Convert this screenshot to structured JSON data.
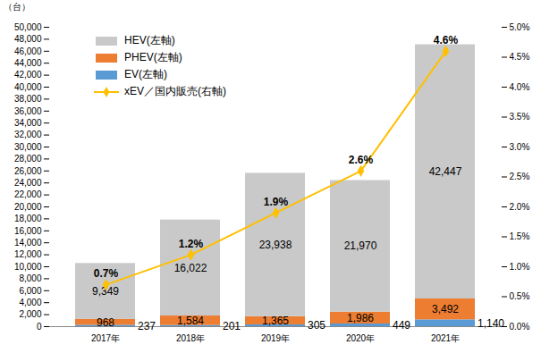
{
  "chart_data": {
    "type": "bar",
    "stacked": true,
    "data_labels": true,
    "legend": "upper left",
    "grid": false,
    "ylabel": "（台）",
    "categories": [
      "2017年",
      "2018年",
      "2019年",
      "2020年",
      "2021年"
    ],
    "ylim": [
      0,
      50000
    ],
    "yticks": [
      0,
      {
        "value": 2000,
        "label": "2,000"
      },
      {
        "value": 4000,
        "label": "4,000"
      },
      {
        "value": 6000,
        "label": "6,000"
      },
      {
        "value": 8000,
        "label": "8,000"
      },
      {
        "value": 10000,
        "label": "10,000"
      },
      {
        "value": 12000,
        "label": "12,000"
      },
      {
        "value": 14000,
        "label": "14,000"
      },
      {
        "value": 16000,
        "label": "16,000"
      },
      {
        "value": 18000,
        "label": "18,000"
      },
      {
        "value": 20000,
        "label": "20,000"
      },
      {
        "value": 22000,
        "label": "22,000"
      },
      {
        "value": 24000,
        "label": "24,000"
      },
      {
        "value": 26000,
        "label": "26,000"
      },
      {
        "value": 28000,
        "label": "28,000"
      },
      {
        "value": 30000,
        "label": "30,000"
      },
      {
        "value": 32000,
        "label": "32,000"
      },
      {
        "value": 34000,
        "label": "34,000"
      },
      {
        "value": 36000,
        "label": "36,000"
      },
      {
        "value": 38000,
        "label": "38,000"
      },
      {
        "value": 40000,
        "label": "40,000"
      },
      {
        "value": 42000,
        "label": "42,000"
      },
      {
        "value": 44000,
        "label": "44,000"
      },
      {
        "value": 46000,
        "label": "46,000"
      },
      {
        "value": 48000,
        "label": "48,000"
      },
      {
        "value": 50000,
        "label": "50,000"
      }
    ],
    "y2lim": [
      0,
      5
    ],
    "y2ticks": [
      {
        "value": 0,
        "label": "0.0%"
      },
      {
        "value": 0.5,
        "label": "0.5%"
      },
      {
        "value": 1,
        "label": "1.0%"
      },
      {
        "value": 1.5,
        "label": "1.5%"
      },
      {
        "value": 2,
        "label": "2.0%"
      },
      {
        "value": 2.5,
        "label": "2.5%"
      },
      {
        "value": 3,
        "label": "3.0%"
      },
      {
        "value": 3.5,
        "label": "3.5%"
      },
      {
        "value": 4,
        "label": "4.0%"
      },
      {
        "value": 4.5,
        "label": "4.5%"
      },
      {
        "value": 5,
        "label": "5.0%"
      }
    ],
    "series": [
      {
        "name": "HEV(左軸)",
        "type": "bar",
        "color": "#c9c9c9",
        "values": [
          9349,
          16022,
          23938,
          21970,
          42447
        ],
        "value_labels": [
          "9,349",
          "16,022",
          "23,938",
          "21,970",
          "42,447"
        ]
      },
      {
        "name": "PHEV(左軸)",
        "type": "bar",
        "color": "#ed7d31",
        "values": [
          968,
          1584,
          1365,
          1986,
          3492
        ],
        "value_labels": [
          "968",
          "1,584",
          "1,365",
          "1,986",
          "3,492"
        ]
      },
      {
        "name": "EV(左軸)",
        "type": "bar",
        "color": "#5b9bd5",
        "values": [
          237,
          201,
          305,
          449,
          1140
        ],
        "value_labels": [
          "237",
          "201",
          "305",
          "449",
          "1,140"
        ]
      },
      {
        "name": "xEV／国内販売(右軸)",
        "type": "line",
        "axis": "y2",
        "color": "#ffc000",
        "marker": "diamond",
        "values": [
          0.7,
          1.2,
          1.9,
          2.6,
          4.6
        ],
        "value_labels": [
          "0.7%",
          "1.2%",
          "1.9%",
          "2.6%",
          "4.6%"
        ]
      }
    ]
  }
}
